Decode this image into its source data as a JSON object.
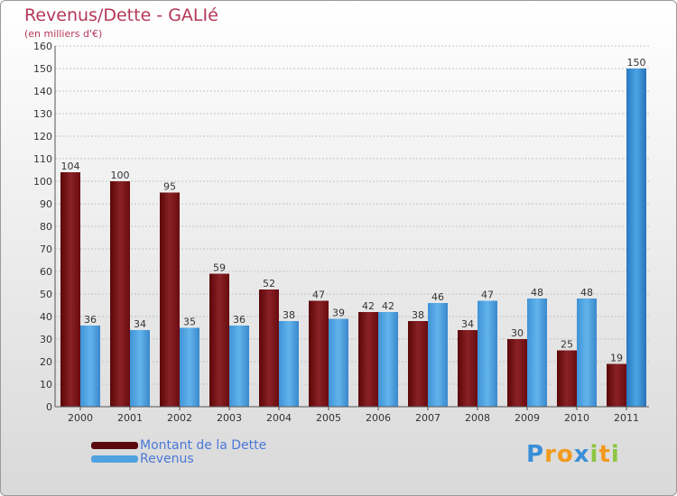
{
  "header": {
    "title": "Revenus/Dette - GALIé",
    "subtitle": "(en milliers d'€)"
  },
  "chart_data": {
    "type": "bar",
    "title": "Revenus/Dette - GALIé",
    "ylabel": "(en milliers d'€)",
    "ylim": [
      0,
      160
    ],
    "yticks": [
      "0",
      "10",
      "20",
      "30",
      "40",
      "50",
      "60",
      "70",
      "80",
      "90",
      "100",
      "110",
      "120",
      "130",
      "140",
      "150",
      "160"
    ],
    "categories": [
      "2000",
      "2001",
      "2002",
      "2003",
      "2004",
      "2005",
      "2006",
      "2007",
      "2008",
      "2009",
      "2010",
      "2011"
    ],
    "series": [
      {
        "name": "Montant de la Dette",
        "color": "#7a1518",
        "values": [
          104,
          100,
          95,
          59,
          52,
          47,
          42,
          38,
          34,
          30,
          25,
          19
        ]
      },
      {
        "name": "Revenus",
        "color": "#4fa3e0",
        "values": [
          36,
          34,
          35,
          36,
          38,
          39,
          42,
          46,
          47,
          48,
          48,
          150
        ]
      }
    ],
    "grid": true,
    "legend_position": "bottom-left"
  },
  "legend": {
    "items": [
      {
        "label": "Montant de la Dette",
        "color": "#5a0a0c"
      },
      {
        "label": "Revenus",
        "color": "#4fa3e0"
      }
    ]
  },
  "logo": {
    "letters": [
      "P",
      "r",
      "o",
      "x",
      "i",
      "t",
      "i"
    ],
    "colors": [
      "#3a8fd8",
      "#f29a1e",
      "#f29a1e",
      "#3a8fd8",
      "#8cc63f",
      "#f29a1e",
      "#8cc63f"
    ]
  }
}
